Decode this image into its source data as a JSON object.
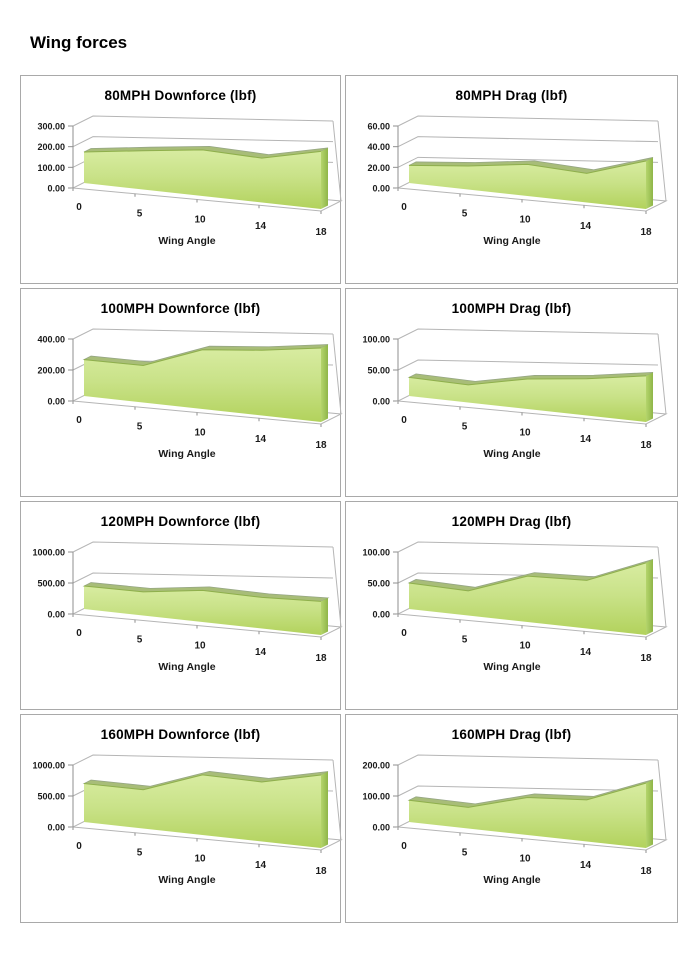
{
  "page": {
    "title": "Wing forces"
  },
  "colors": {
    "area_gradient_top": "#d8eca1",
    "area_gradient_mid": "#c9e288",
    "area_gradient_bottom": "#b2d25c",
    "ribbon_green": "#a8bd78",
    "ribbon_edge": "#96a685",
    "front_edge": "#8fb04b",
    "side_green_light": "#b5d56d",
    "side_green_dark": "#8fb648",
    "gridline": "#b5b5b5",
    "axis": "#8f8f8f",
    "text": "#1a1a1a",
    "box_border": "#a9a9a9"
  },
  "chart_data": [
    {
      "type": "area",
      "title": "80MPH Downforce (lbf)",
      "xlabel": "Wing Angle",
      "categories": [
        "0",
        "5",
        "10",
        "14",
        "18"
      ],
      "values": [
        150,
        165,
        175,
        152,
        180
      ],
      "ylim": [
        0,
        300
      ],
      "yticks": [
        "0.00",
        "100.00",
        "200.00",
        "300.00"
      ],
      "legend": "none",
      "grid": "on"
    },
    {
      "type": "area",
      "title": "80MPH Drag (lbf)",
      "xlabel": "Wing Angle",
      "categories": [
        "0",
        "5",
        "10",
        "14",
        "18"
      ],
      "values": [
        17,
        20,
        24,
        20,
        30
      ],
      "ylim": [
        0,
        60
      ],
      "yticks": [
        "0.00",
        "20.00",
        "40.00",
        "60.00"
      ],
      "legend": "none",
      "grid": "on"
    },
    {
      "type": "area",
      "title": "100MPH Downforce (lbf)",
      "xlabel": "Wing Angle",
      "categories": [
        "0",
        "5",
        "10",
        "14",
        "18"
      ],
      "values": [
        235,
        210,
        300,
        298,
        308
      ],
      "ylim": [
        0,
        400
      ],
      "yticks": [
        "0.00",
        "200.00",
        "400.00"
      ],
      "legend": "none",
      "grid": "on"
    },
    {
      "type": "area",
      "title": "100MPH Drag (lbf)",
      "xlabel": "Wing Angle",
      "categories": [
        "0",
        "5",
        "10",
        "14",
        "18"
      ],
      "values": [
        30,
        25,
        38,
        42,
        48
      ],
      "ylim": [
        0,
        100
      ],
      "yticks": [
        "0.00",
        "50.00",
        "100.00"
      ],
      "legend": "none",
      "grid": "on"
    },
    {
      "type": "area",
      "title": "120MPH Downforce (lbf)",
      "xlabel": "Wing Angle",
      "categories": [
        "0",
        "5",
        "10",
        "14",
        "18"
      ],
      "values": [
        370,
        335,
        400,
        355,
        350
      ],
      "ylim": [
        0,
        1000
      ],
      "yticks": [
        "0.00",
        "500.00",
        "1000.00"
      ],
      "legend": "none",
      "grid": "on"
    },
    {
      "type": "area",
      "title": "120MPH Drag (lbf)",
      "xlabel": "Wing Angle",
      "categories": [
        "0",
        "5",
        "10",
        "14",
        "18"
      ],
      "values": [
        42,
        35,
        58,
        55,
        75
      ],
      "ylim": [
        0,
        100
      ],
      "yticks": [
        "0.00",
        "50.00",
        "100.00"
      ],
      "legend": "none",
      "grid": "on"
    },
    {
      "type": "area",
      "title": "160MPH Downforce (lbf)",
      "xlabel": "Wing Angle",
      "categories": [
        "0",
        "5",
        "10",
        "14",
        "18"
      ],
      "values": [
        620,
        550,
        760,
        680,
        760
      ],
      "ylim": [
        0,
        1000
      ],
      "yticks": [
        "0.00",
        "500.00",
        "1000.00"
      ],
      "legend": "none",
      "grid": "on"
    },
    {
      "type": "area",
      "title": "160MPH Drag (lbf)",
      "xlabel": "Wing Angle",
      "categories": [
        "0",
        "5",
        "10",
        "14",
        "18"
      ],
      "values": [
        70,
        60,
        95,
        95,
        135
      ],
      "ylim": [
        0,
        200
      ],
      "yticks": [
        "0.00",
        "100.00",
        "200.00"
      ],
      "legend": "none",
      "grid": "on"
    }
  ]
}
